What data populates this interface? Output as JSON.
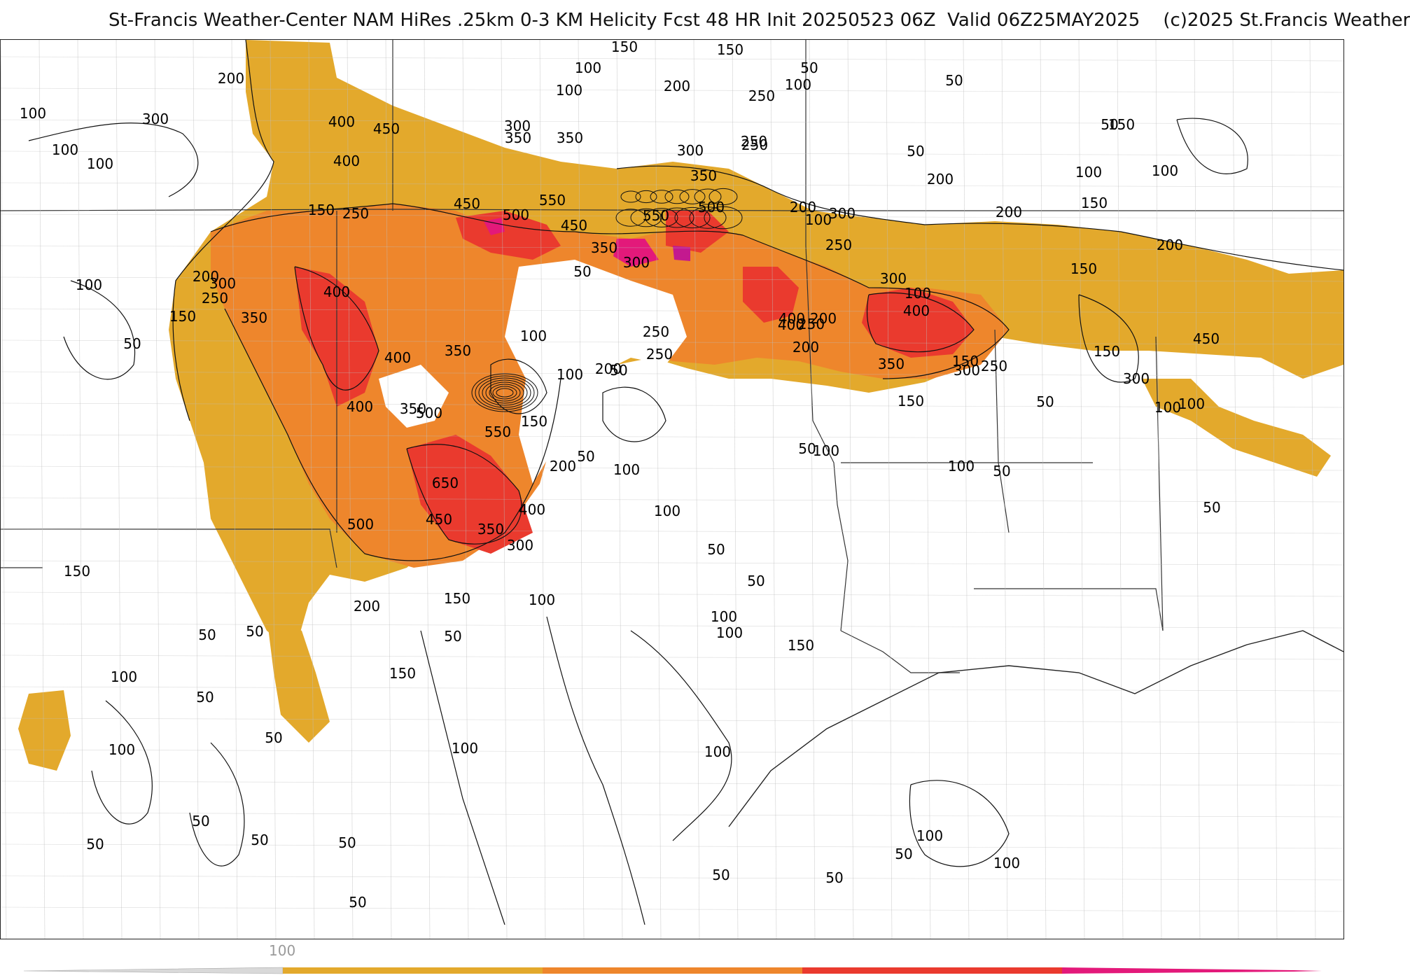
{
  "title": "St-Francis Weather-Center NAM HiRes .25km 0-3 KM Helicity Fcst 48 HR Init 20250523 06Z  Valid 06Z25MAY2025    (c)2025 St.Francis Weather",
  "colors": {
    "c100": "#e3a92c",
    "c200": "#ee862c",
    "c300": "#ea3a2e",
    "c400": "#e3197a",
    "c500": "#c3198f",
    "contour": "#111111",
    "borders": "#bdbdbd",
    "state_lines": "#333333"
  },
  "legend": {
    "first_tick": "100",
    "bands": [
      "#e3a92c",
      "#ee862c",
      "#ea3a2e",
      "#e3197a"
    ]
  },
  "contour_labels": [
    "150",
    "150",
    "50",
    "100",
    "200",
    "100",
    "50",
    "100",
    "250",
    "100",
    "200",
    "100",
    "300",
    "300",
    "250",
    "150",
    "200",
    "100",
    "350",
    "350",
    "50",
    "250",
    "400",
    "450",
    "300",
    "50",
    "100",
    "100",
    "400",
    "200",
    "100",
    "350",
    "500",
    "450",
    "550",
    "150",
    "500",
    "250",
    "200",
    "300",
    "150",
    "200",
    "550",
    "450",
    "350",
    "50",
    "300",
    "250",
    "300",
    "200",
    "250",
    "350",
    "400",
    "150",
    "100",
    "150",
    "100",
    "300",
    "400",
    "400",
    "350",
    "250",
    "200",
    "150",
    "50",
    "400",
    "250",
    "100",
    "350",
    "400",
    "400",
    "200",
    "300",
    "250",
    "50",
    "100",
    "350",
    "50",
    "250",
    "200",
    "100",
    "150",
    "100",
    "450",
    "300",
    "150",
    "500",
    "550",
    "150",
    "50",
    "50",
    "200",
    "100",
    "100",
    "100",
    "650",
    "50",
    "50",
    "400",
    "100",
    "500",
    "450",
    "350",
    "300",
    "50",
    "150",
    "150",
    "200",
    "100",
    "50",
    "50",
    "100",
    "50",
    "50",
    "100",
    "150",
    "100",
    "150",
    "50",
    "100",
    "100",
    "100",
    "50",
    "50",
    "100",
    "50",
    "50",
    "50",
    "50",
    "50",
    "50",
    "50",
    "100"
  ]
}
